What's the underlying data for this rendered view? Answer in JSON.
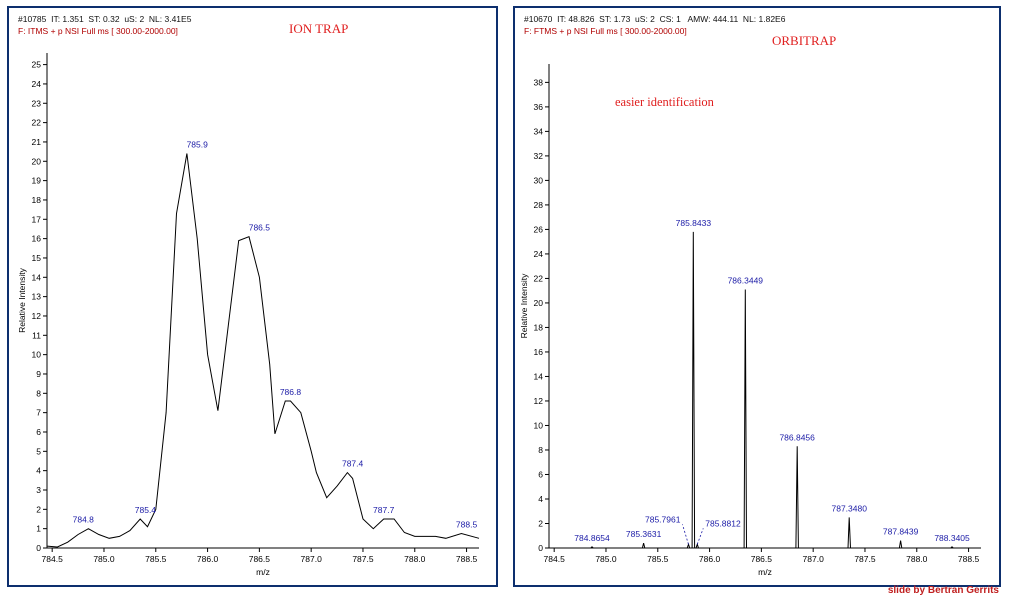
{
  "credit": "slide by Bertran Gerrits",
  "colors": {
    "frame": "#0d2f6e",
    "trace": "#000000",
    "peak_label": "#1a1aa6",
    "title": "#e02020",
    "filter": "#b00000"
  },
  "chart_data": [
    {
      "type": "line",
      "panel_title": "ION TRAP",
      "header_line1": "#10785  IT: 1.351  ST: 0.32  uS: 2  NL: 3.41E5",
      "header_line2": "F: ITMS + p NSI Full ms [ 300.00-2000.00]",
      "xlabel": "m/z",
      "ylabel": "Relative Intensity",
      "xlim": [
        784.45,
        788.62
      ],
      "ylim": [
        0,
        25.6
      ],
      "x_ticks": [
        784.5,
        785.0,
        785.5,
        786.0,
        786.5,
        787.0,
        787.5,
        788.0,
        788.5
      ],
      "x_tick_labels": [
        "784.5",
        "785.0",
        "785.5",
        "786.0",
        "786.5",
        "787.0",
        "787.5",
        "788.0",
        "788.5"
      ],
      "y_ticks": [
        0,
        1,
        2,
        3,
        4,
        5,
        6,
        7,
        8,
        9,
        10,
        11,
        12,
        13,
        14,
        15,
        16,
        17,
        18,
        19,
        20,
        21,
        22,
        23,
        24,
        25
      ],
      "x": [
        784.45,
        784.55,
        784.65,
        784.75,
        784.85,
        784.95,
        785.05,
        785.15,
        785.25,
        785.35,
        785.42,
        785.5,
        785.6,
        785.7,
        785.8,
        785.9,
        786.0,
        786.1,
        786.2,
        786.3,
        786.4,
        786.5,
        786.6,
        786.65,
        786.75,
        786.8,
        786.9,
        787.0,
        787.05,
        787.15,
        787.25,
        787.35,
        787.4,
        787.5,
        787.6,
        787.7,
        787.8,
        787.9,
        788.0,
        788.1,
        788.2,
        788.3,
        788.45,
        788.62
      ],
      "y": [
        0.1,
        0.05,
        0.3,
        0.7,
        1.0,
        0.7,
        0.5,
        0.6,
        0.9,
        1.5,
        1.1,
        2.0,
        7.0,
        17.3,
        20.4,
        16.0,
        10.0,
        7.1,
        11.5,
        15.9,
        16.1,
        14.0,
        9.5,
        5.9,
        7.6,
        7.6,
        7.0,
        5.0,
        3.9,
        2.6,
        3.2,
        3.9,
        3.6,
        1.5,
        1.0,
        1.5,
        1.5,
        0.8,
        0.6,
        0.6,
        0.6,
        0.5,
        0.75,
        0.5
      ],
      "peak_labels": [
        {
          "x": 784.8,
          "y": 1.0,
          "text": "784.8"
        },
        {
          "x": 785.4,
          "y": 1.5,
          "text": "785.4"
        },
        {
          "x": 785.9,
          "y": 20.4,
          "text": "785.9"
        },
        {
          "x": 786.5,
          "y": 16.1,
          "text": "786.5"
        },
        {
          "x": 786.8,
          "y": 7.6,
          "text": "786.8"
        },
        {
          "x": 787.4,
          "y": 3.9,
          "text": "787.4"
        },
        {
          "x": 787.7,
          "y": 1.5,
          "text": "787.7"
        },
        {
          "x": 788.5,
          "y": 0.75,
          "text": "788.5"
        }
      ]
    },
    {
      "type": "line",
      "panel_title": "ORBITRAP",
      "annotation": "easier identification",
      "header_line1": "#10670  IT: 48.826  ST: 1.73  uS: 2  CS: 1   AMW: 444.11  NL: 1.82E6",
      "header_line2": "F: FTMS + p NSI Full ms [ 300.00-2000.00]",
      "xlabel": "m/z",
      "ylabel": "Relative Intensity",
      "xlim": [
        784.45,
        788.62
      ],
      "ylim": [
        0,
        39.5
      ],
      "x_ticks": [
        784.5,
        785.0,
        785.5,
        786.0,
        786.5,
        787.0,
        787.5,
        788.0,
        788.5
      ],
      "x_tick_labels": [
        "784.5",
        "785.0",
        "785.5",
        "786.0",
        "786.5",
        "787.0",
        "787.5",
        "788.0",
        "788.5"
      ],
      "y_ticks": [
        0,
        2,
        4,
        6,
        8,
        10,
        12,
        14,
        16,
        18,
        20,
        22,
        24,
        26,
        28,
        30,
        32,
        34,
        36,
        38
      ],
      "peaks": [
        {
          "x": 784.8654,
          "y": 0.1
        },
        {
          "x": 785.3631,
          "y": 0.4
        },
        {
          "x": 785.7961,
          "y": 0.3
        },
        {
          "x": 785.8433,
          "y": 25.8
        },
        {
          "x": 785.8812,
          "y": 0.3
        },
        {
          "x": 786.3449,
          "y": 21.1
        },
        {
          "x": 786.8456,
          "y": 8.3
        },
        {
          "x": 787.348,
          "y": 2.5
        },
        {
          "x": 787.8439,
          "y": 0.6
        },
        {
          "x": 788.3405,
          "y": 0.1
        }
      ],
      "peak_labels": [
        {
          "x": 784.8654,
          "y": 0.1,
          "text": "784.8654"
        },
        {
          "x": 785.3631,
          "y": 0.4,
          "text": "785.3631"
        },
        {
          "x": 785.7961,
          "y": 0.3,
          "text": "785.7961",
          "side": "left"
        },
        {
          "x": 785.8433,
          "y": 25.8,
          "text": "785.8433"
        },
        {
          "x": 785.8812,
          "y": 0.3,
          "text": "785.8812",
          "side": "right"
        },
        {
          "x": 786.3449,
          "y": 21.1,
          "text": "786.3449"
        },
        {
          "x": 786.8456,
          "y": 8.3,
          "text": "786.8456"
        },
        {
          "x": 787.348,
          "y": 2.5,
          "text": "787.3480"
        },
        {
          "x": 787.8439,
          "y": 0.6,
          "text": "787.8439"
        },
        {
          "x": 788.3405,
          "y": 0.1,
          "text": "788.3405"
        }
      ]
    }
  ]
}
